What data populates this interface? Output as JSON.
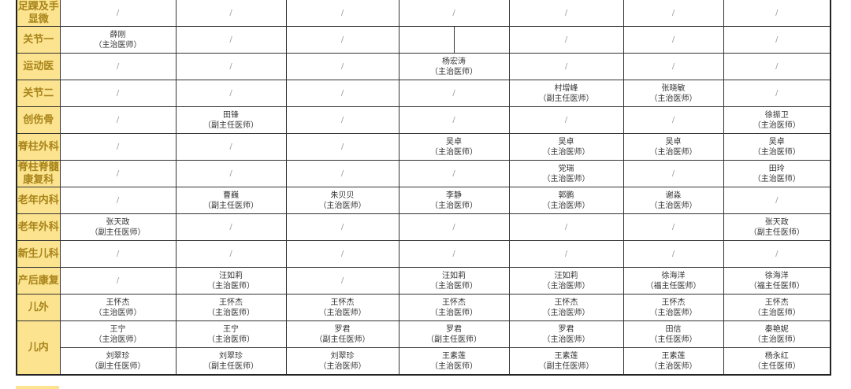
{
  "colors": {
    "header_bg": "#fbe38f",
    "header_text": "#a8841a",
    "border": "#333333"
  },
  "rows": [
    {
      "dept": "足踝及手显微",
      "cells": [
        "/",
        "/",
        "/",
        "/",
        "/",
        "/",
        "/"
      ]
    },
    {
      "dept": "关节一",
      "cells": [
        {
          "name": "薛刚",
          "title": "（主治医师）"
        },
        "/",
        "/",
        {
          "split": [
            "",
            ""
          ]
        },
        "/",
        "/",
        "/"
      ]
    },
    {
      "dept": "运动医",
      "cells": [
        "/",
        "/",
        "/",
        {
          "name": "杨宏涛",
          "title": "（主治医师）"
        },
        "/",
        "/",
        "/"
      ]
    },
    {
      "dept": "关节二",
      "cells": [
        "/",
        "/",
        "/",
        "/",
        {
          "name": "村增峰",
          "title": "（副主任医师）"
        },
        {
          "name": "张晓敏",
          "title": "（主治医师）"
        },
        "/"
      ]
    },
    {
      "dept": "创伤骨",
      "cells": [
        "/",
        {
          "name": "田锋",
          "title": "（副主任医师）"
        },
        "/",
        "/",
        "/",
        "/",
        {
          "name": "徐振卫",
          "title": "（主治医师）"
        }
      ]
    },
    {
      "dept": "脊柱外科",
      "cells": [
        "/",
        "/",
        "/",
        {
          "name": "吴卓",
          "title": "（主治医师）"
        },
        {
          "name": "吴卓",
          "title": "（主治医师）"
        },
        {
          "name": "吴卓",
          "title": "（主治医师）"
        },
        {
          "name": "吴卓",
          "title": "（主治医师）"
        }
      ]
    },
    {
      "dept": "脊柱脊髓康复科",
      "cells": [
        "/",
        "/",
        "/",
        "/",
        {
          "name": "党瑞",
          "title": "（主治医师）"
        },
        "/",
        {
          "name": "田玲",
          "title": "（主治医师）"
        }
      ]
    },
    {
      "dept": "老年内科",
      "cells": [
        "/",
        {
          "name": "曹巍",
          "title": "（副主任医师）"
        },
        {
          "name": "朱贝贝",
          "title": "（主治医师）"
        },
        {
          "name": "李静",
          "title": "（主治医师）"
        },
        {
          "name": "郭鹏",
          "title": "（主治医师）"
        },
        {
          "name": "谢淼",
          "title": "（主治医师）"
        },
        "/"
      ]
    },
    {
      "dept": "老年外科",
      "cells": [
        {
          "name": "张天政",
          "title": "（副主任医师）"
        },
        "/",
        "/",
        "/",
        "/",
        "/",
        {
          "name": "张天政",
          "title": "（副主任医师）"
        }
      ]
    },
    {
      "dept": "新生儿科",
      "cells": [
        "/",
        "/",
        "/",
        "/",
        "/",
        "/",
        "/"
      ]
    },
    {
      "dept": "产后康复",
      "cells": [
        "/",
        {
          "name": "汪如莉",
          "title": "（主治医师）"
        },
        "/",
        {
          "name": "汪如莉",
          "title": "（主治医师）"
        },
        {
          "name": "汪如莉",
          "title": "（主治医师）"
        },
        {
          "name": "徐海洋",
          "title": "（福主任医师）"
        },
        {
          "name": "徐海洋",
          "title": "（福主任医师）"
        }
      ]
    },
    {
      "dept": "儿外",
      "cells": [
        {
          "name": "王怀杰",
          "title": "（主治医师）"
        },
        {
          "name": "王怀杰",
          "title": "（主治医师）"
        },
        {
          "name": "王怀杰",
          "title": "（主治医师）"
        },
        {
          "name": "王怀杰",
          "title": "（主治医师）"
        },
        {
          "name": "王怀杰",
          "title": "（主治医师）"
        },
        {
          "name": "王怀杰",
          "title": "（主治医师）"
        },
        {
          "name": "王怀杰",
          "title": "（主治医师）"
        }
      ]
    },
    {
      "dept": "儿内",
      "cells": [
        {
          "name": "王宁",
          "title": "（主治医师）"
        },
        {
          "name": "王宁",
          "title": "（主治医师）"
        },
        {
          "name": "罗君",
          "title": "（副主任医师）"
        },
        {
          "name": "罗君",
          "title": "（副主任医师）"
        },
        {
          "name": "罗君",
          "title": "（主治医师）"
        },
        {
          "name": "田信",
          "title": "（主任医师）"
        },
        {
          "name": "秦艳妮",
          "title": "（主治医师）"
        }
      ],
      "cells2": [
        {
          "name": "刘翠珍",
          "title": "（副主任医师）"
        },
        {
          "name": "刘翠珍",
          "title": "（副主任医师）"
        },
        {
          "name": "刘翠珍",
          "title": "（主治医师）"
        },
        {
          "name": "王素莲",
          "title": "（主治医师）"
        },
        {
          "name": "王素莲",
          "title": "（副主任医师）"
        },
        {
          "name": "王素莲",
          "title": "（主治医师）"
        },
        {
          "name": "杨永红",
          "title": "（主任医师）"
        }
      ]
    }
  ]
}
